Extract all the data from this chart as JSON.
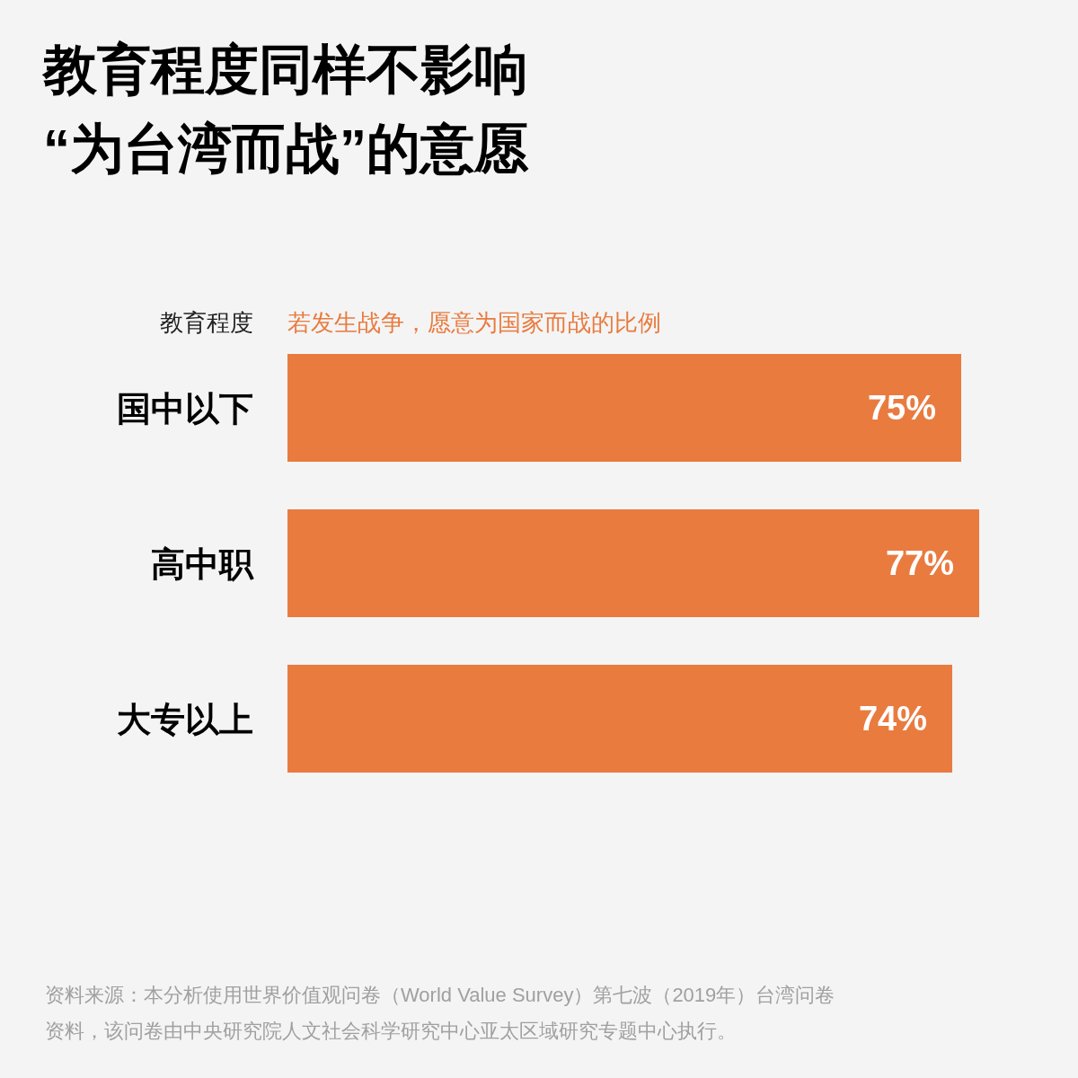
{
  "chart_data": {
    "type": "bar",
    "orientation": "horizontal",
    "title": "教育程度同样不影响\n“为台湾而战”的意愿",
    "ylabel": "教育程度",
    "xlabel": "若发生战争，愿意为国家而战的比例",
    "categories": [
      "国中以下",
      "高中职",
      "大专以上"
    ],
    "values": [
      75,
      77,
      74
    ],
    "value_labels": [
      "75%",
      "77%",
      "74%"
    ],
    "color": "#e97b3f",
    "annotations": [
      "资料来源：本分析使用世界价值观问卷（World Value Survey）第七波（2019年）台湾问卷资料，该问卷由中央研究院人文社会科学研究中心亚太区域研究专题中心执行。"
    ]
  }
}
